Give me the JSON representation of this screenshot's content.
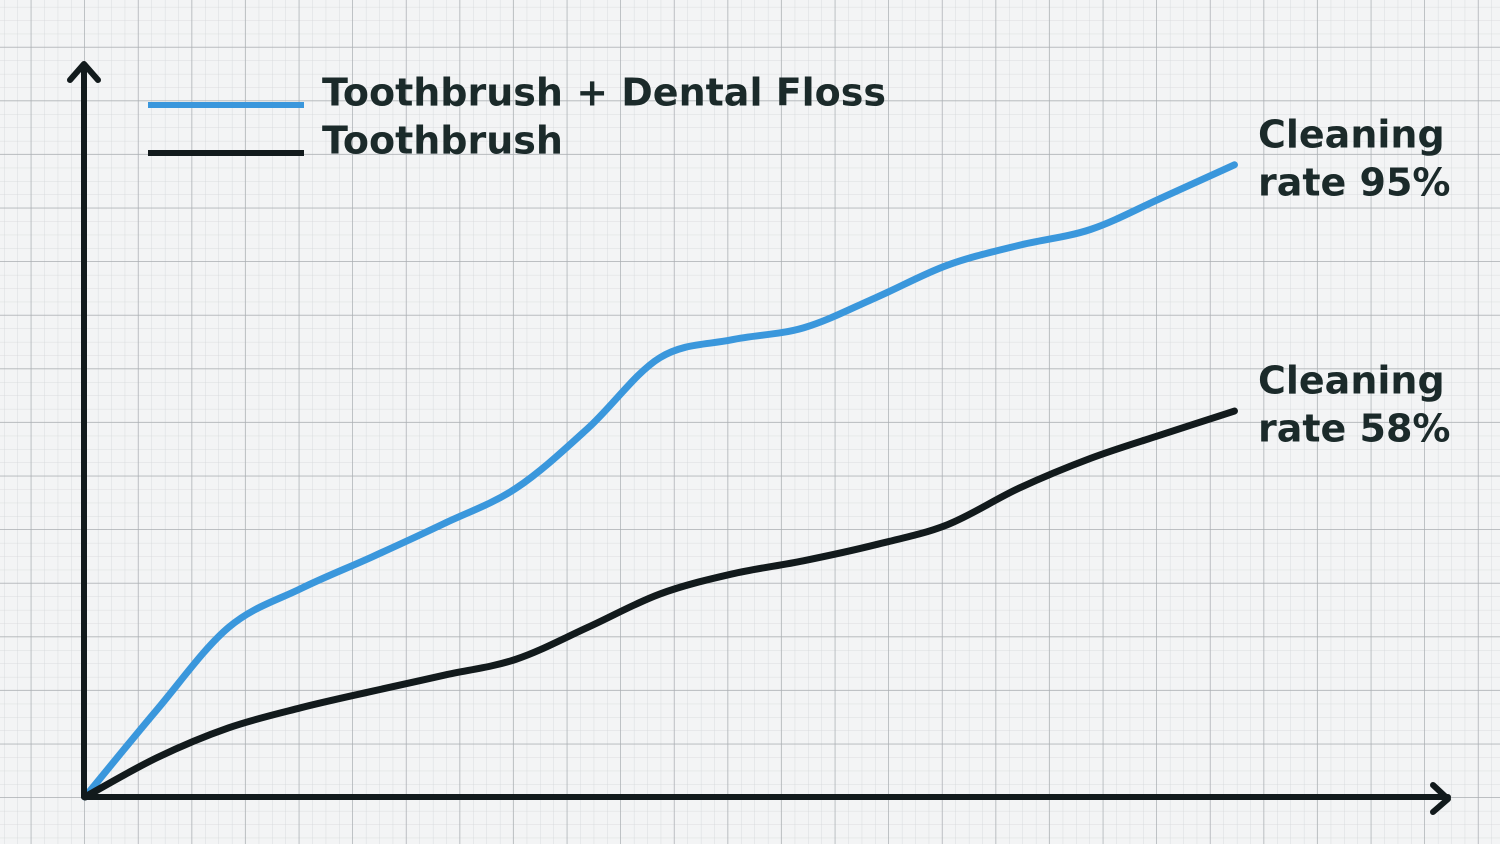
{
  "chart_data": {
    "type": "line",
    "x": [
      0,
      1,
      2,
      3,
      4,
      5,
      6,
      7,
      8,
      9,
      10,
      11,
      12,
      13,
      14,
      15,
      16
    ],
    "xlim": [
      0,
      19
    ],
    "ylim": [
      0,
      110
    ],
    "legend": "top-left",
    "series": [
      {
        "name": "Toothbrush + Dental Floss",
        "color": "#3a97dc",
        "values": [
          0,
          13.1,
          25.5,
          31.3,
          36.1,
          41.1,
          46.4,
          55.4,
          66,
          68.7,
          70.5,
          75,
          79.9,
          82.9,
          85.3,
          90.1,
          95
        ]
      },
      {
        "name": "Toothbrush",
        "color": "#121a1c",
        "values": [
          0,
          5.9,
          10.4,
          13.4,
          15.9,
          18.3,
          20.7,
          25.5,
          30.5,
          33.5,
          35.5,
          37.9,
          40.9,
          46.4,
          50.9,
          54.5,
          58
        ]
      }
    ],
    "annotations": [
      {
        "lines": [
          "Cleaning",
          "rate 95%"
        ]
      },
      {
        "lines": [
          "Cleaning",
          "rate 58%"
        ]
      }
    ]
  }
}
